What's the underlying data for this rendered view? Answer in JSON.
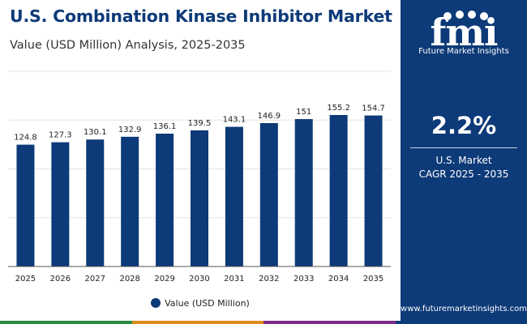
{
  "header": {
    "title": "U.S. Combination Kinase Inhibitor Market",
    "subtitle": "Value (USD Million) Analysis, 2025-2035"
  },
  "brand": {
    "logo_text": "fmi",
    "name": "Future Market Insights",
    "url": "www.futuremarketinsights.com",
    "primary_color": "#0d3a78"
  },
  "stat": {
    "value": "2.2%",
    "label_line1": "U.S. Market",
    "label_line2": "CAGR 2025 - 2035"
  },
  "legend": {
    "label": "Value (USD Million)"
  },
  "chart_data": {
    "type": "bar",
    "categories": [
      "2025",
      "2026",
      "2027",
      "2028",
      "2029",
      "2030",
      "2031",
      "2032",
      "2033",
      "2034",
      "2035"
    ],
    "series": [
      {
        "name": "Value (USD Million)",
        "values": [
          124.8,
          127.3,
          130.1,
          132.9,
          136.1,
          139.5,
          143.1,
          146.9,
          151,
          155.2,
          154.7
        ],
        "labels": [
          "124.8",
          "127.3",
          "130.1",
          "132.9",
          "136.1",
          "139.5",
          "143.1",
          "146.9",
          "151",
          "155.2",
          "154.7"
        ],
        "color": "#0d3a78"
      }
    ],
    "ylim": [
      0,
      200
    ],
    "grid": true,
    "legend_position": "bottom"
  },
  "footer_colors": [
    "#2a8d3f",
    "#e08a1e",
    "#7b2c86",
    "#0d3a78"
  ]
}
